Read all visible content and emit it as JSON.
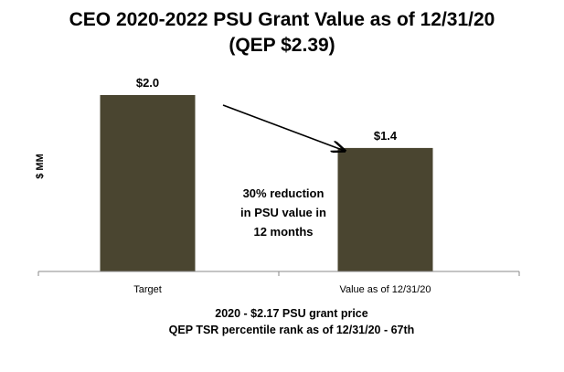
{
  "chart_data": {
    "type": "bar",
    "title": "CEO 2020-2022 PSU Grant Value as of 12/31/20",
    "subtitle": "(QEP $2.39)",
    "ylabel": "$ MM",
    "xlabel": "",
    "categories": [
      "Target",
      "Value as of 12/31/20"
    ],
    "values": [
      2.0,
      1.4
    ],
    "data_labels": [
      "$2.0",
      "$1.4"
    ],
    "ylim": [
      0,
      2.0
    ],
    "grid": false,
    "bar_color": "#4a4530",
    "annotation": [
      "30% reduction",
      "in PSU value in",
      "12 months"
    ],
    "arrow": {
      "from": "Target",
      "to": "Value as of 12/31/20"
    },
    "footnotes": [
      "2020 - $2.17 PSU grant price",
      "QEP TSR percentile rank as of 12/31/20 - 67th"
    ]
  }
}
